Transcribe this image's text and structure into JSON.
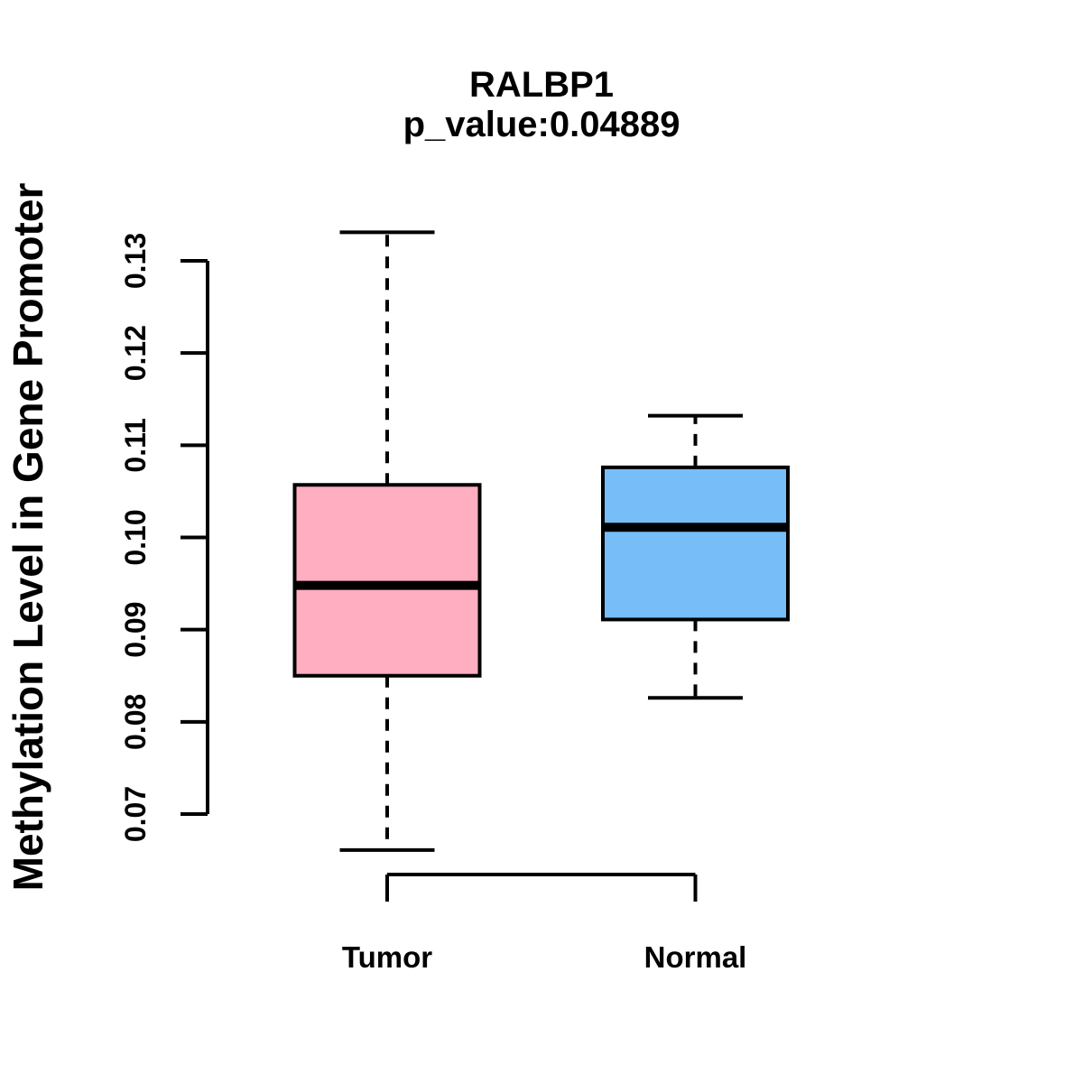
{
  "title": "RALBP1",
  "subtitle": "p_value:0.04889",
  "y_axis": {
    "label": "Methylation Level in Gene Promoter",
    "ticks": [
      "0.07",
      "0.08",
      "0.09",
      "0.10",
      "0.11",
      "0.12",
      "0.13"
    ]
  },
  "x_axis": {
    "categories": [
      "Tumor",
      "Normal"
    ]
  },
  "colors": {
    "tumor_fill": "#FFAEC1",
    "normal_fill": "#77BEF8",
    "stroke": "#000000",
    "background": "#FFFFFF"
  },
  "chart_data": {
    "type": "boxplot",
    "title": "RALBP1",
    "subtitle": "p_value:0.04889",
    "ylabel": "Methylation Level in Gene Promoter",
    "xlabel": "",
    "categories": [
      "Tumor",
      "Normal"
    ],
    "series": [
      {
        "name": "Tumor",
        "min": 0.0661,
        "q1": 0.085,
        "median": 0.0948,
        "q3": 0.1057,
        "max": 0.1331,
        "color": "#FFAEC1",
        "whisker_style": "dashed"
      },
      {
        "name": "Normal",
        "min": 0.0826,
        "q1": 0.0911,
        "median": 0.1011,
        "q3": 0.1076,
        "max": 0.1132,
        "color": "#77BEF8",
        "whisker_style": "dashed"
      }
    ],
    "ylim": [
      0.07,
      0.13
    ],
    "yticks": [
      0.07,
      0.08,
      0.09,
      0.1,
      0.11,
      0.12,
      0.13
    ],
    "grid": false,
    "outliers": []
  }
}
